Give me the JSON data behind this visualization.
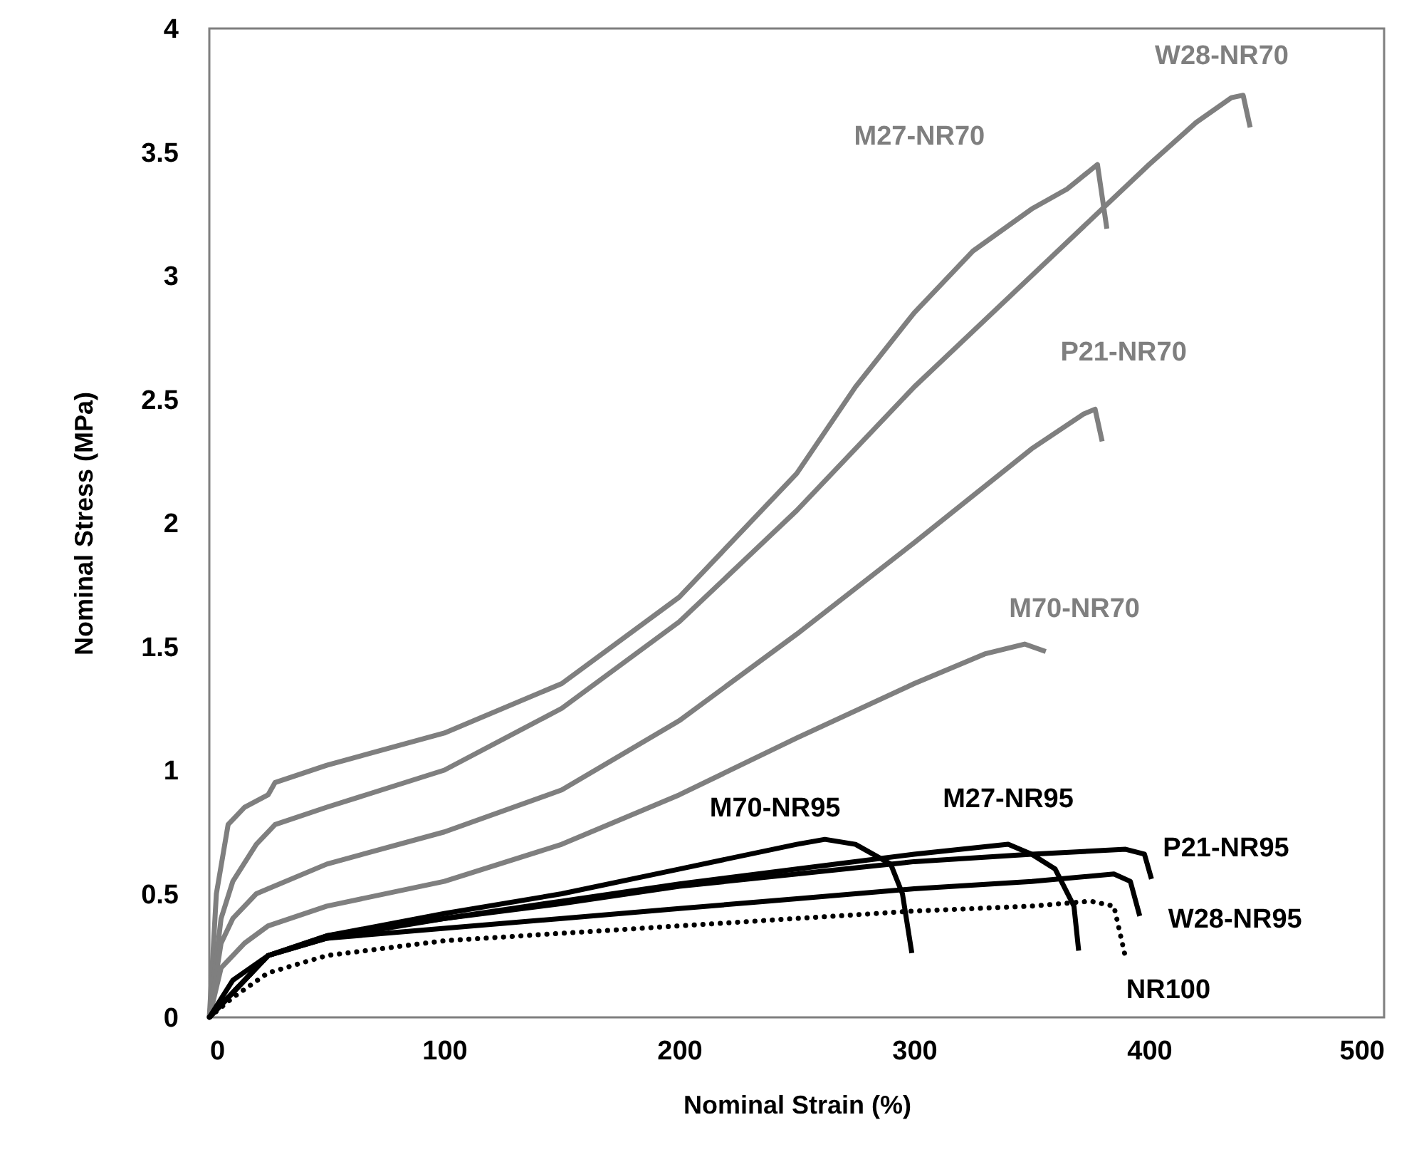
{
  "chart_data": {
    "type": "line",
    "xlabel": "Nominal Strain (%)",
    "ylabel": "Nominal Stress (MPa)",
    "xlim": [
      0,
      500
    ],
    "ylim": [
      0,
      4
    ],
    "xticks": [
      0,
      100,
      200,
      300,
      400,
      500
    ],
    "yticks": [
      0,
      0.5,
      1,
      1.5,
      2,
      2.5,
      3,
      3.5,
      4
    ],
    "grid": false,
    "legend": false,
    "marker": "none",
    "series": [
      {
        "name": "M27-NR70",
        "color": "#7f7f7f",
        "line_style": "solid",
        "x": [
          0,
          3,
          8,
          15,
          25,
          28,
          50,
          100,
          150,
          200,
          250,
          275,
          300,
          325,
          350,
          365,
          378,
          382
        ],
        "values": [
          0,
          0.5,
          0.78,
          0.85,
          0.9,
          0.95,
          1.02,
          1.15,
          1.35,
          1.7,
          2.2,
          2.55,
          2.85,
          3.1,
          3.27,
          3.35,
          3.45,
          3.19
        ]
      },
      {
        "name": "W28-NR70",
        "color": "#7f7f7f",
        "line_style": "solid",
        "x": [
          0,
          5,
          10,
          20,
          28,
          50,
          100,
          150,
          200,
          250,
          300,
          350,
          380,
          400,
          420,
          435,
          440,
          443
        ],
        "values": [
          0,
          0.4,
          0.55,
          0.7,
          0.78,
          0.85,
          1.0,
          1.25,
          1.6,
          2.05,
          2.55,
          3.0,
          3.27,
          3.45,
          3.62,
          3.72,
          3.73,
          3.6
        ]
      },
      {
        "name": "P21-NR70",
        "color": "#7f7f7f",
        "line_style": "solid",
        "x": [
          0,
          5,
          10,
          20,
          25,
          50,
          100,
          150,
          200,
          250,
          300,
          350,
          372,
          377,
          380
        ],
        "values": [
          0,
          0.3,
          0.4,
          0.5,
          0.52,
          0.62,
          0.75,
          0.92,
          1.2,
          1.55,
          1.92,
          2.3,
          2.44,
          2.46,
          2.33
        ]
      },
      {
        "name": "M70-NR70",
        "color": "#7f7f7f",
        "line_style": "solid",
        "x": [
          0,
          5,
          15,
          25,
          50,
          100,
          150,
          200,
          250,
          300,
          330,
          347,
          356
        ],
        "values": [
          0,
          0.2,
          0.3,
          0.37,
          0.45,
          0.55,
          0.7,
          0.9,
          1.13,
          1.35,
          1.47,
          1.51,
          1.48
        ]
      },
      {
        "name": "M70-NR95",
        "color": "#000000",
        "line_style": "solid",
        "x": [
          0,
          10,
          25,
          50,
          100,
          150,
          200,
          250,
          262,
          275,
          290,
          295,
          299
        ],
        "values": [
          0,
          0.15,
          0.25,
          0.33,
          0.42,
          0.5,
          0.6,
          0.7,
          0.72,
          0.7,
          0.62,
          0.5,
          0.26
        ]
      },
      {
        "name": "M27-NR95",
        "color": "#000000",
        "line_style": "solid",
        "x": [
          0,
          25,
          50,
          100,
          150,
          200,
          250,
          300,
          340,
          350,
          360,
          368,
          370
        ],
        "values": [
          0,
          0.25,
          0.33,
          0.4,
          0.47,
          0.54,
          0.6,
          0.66,
          0.7,
          0.66,
          0.6,
          0.45,
          0.27
        ]
      },
      {
        "name": "P21-NR95",
        "color": "#000000",
        "line_style": "solid",
        "x": [
          0,
          25,
          50,
          100,
          150,
          200,
          250,
          300,
          350,
          390,
          398,
          401
        ],
        "values": [
          0,
          0.25,
          0.32,
          0.4,
          0.46,
          0.53,
          0.58,
          0.63,
          0.66,
          0.68,
          0.66,
          0.56
        ]
      },
      {
        "name": "W28-NR95",
        "color": "#000000",
        "line_style": "solid",
        "x": [
          0,
          25,
          50,
          100,
          150,
          200,
          250,
          300,
          350,
          385,
          392,
          396
        ],
        "values": [
          0,
          0.25,
          0.32,
          0.36,
          0.4,
          0.44,
          0.48,
          0.52,
          0.55,
          0.58,
          0.55,
          0.41
        ]
      },
      {
        "name": "NR100",
        "color": "#000000",
        "line_style": "dotted",
        "x": [
          0,
          10,
          25,
          50,
          100,
          150,
          200,
          250,
          300,
          350,
          375,
          385,
          390
        ],
        "values": [
          0,
          0.08,
          0.18,
          0.25,
          0.31,
          0.34,
          0.37,
          0.4,
          0.43,
          0.45,
          0.47,
          0.45,
          0.24
        ]
      }
    ]
  }
}
